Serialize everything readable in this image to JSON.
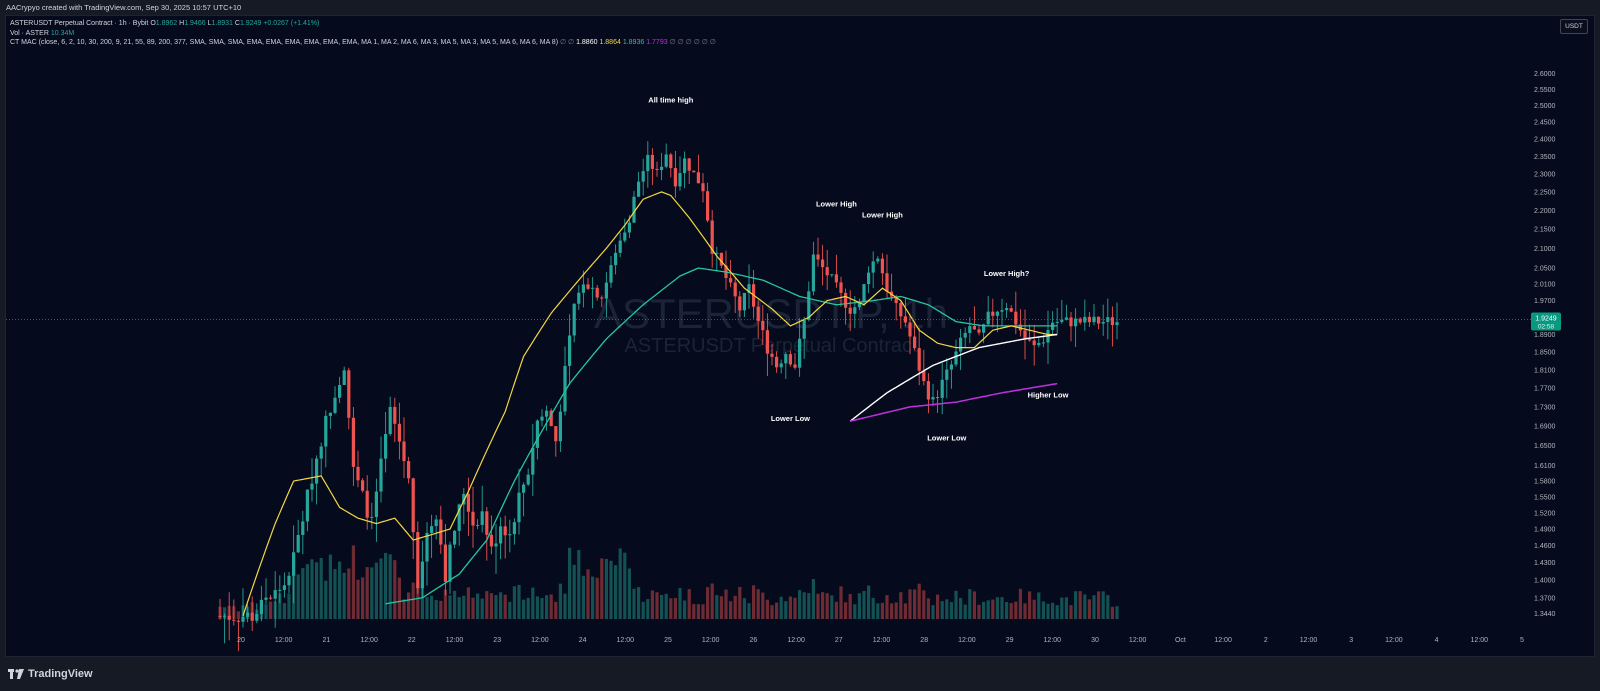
{
  "header": {
    "credit": "AACrypyo created with TradingView.com, Sep 30, 2025 10:57 UTC+10"
  },
  "legend": {
    "symbol": "ASTERUSDT Perpetual Contract · 1h · Bybit",
    "o_label": "O",
    "o_value": "1.8962",
    "h_label": "H",
    "h_value": "1.9466",
    "l_label": "L",
    "l_value": "1.8931",
    "c_label": "C",
    "c_value": "1.9249",
    "change": "+0.0267 (+1.41%)",
    "vol_label": "Vol · ASTER",
    "vol_value": "10.34M",
    "mac_label": "CT MAC (close, 6, 2, 10, 30, 200, 9, 21, 55, 89, 200, 377, SMA, SMA, SMA, EMA, EMA, EMA, EMA, EMA, EMA, MA 1, MA 2, MA 6, MA 3, MA 5, MA 3, MA 5, MA 6, MA 6, MA 8)",
    "mac_pre": "∅ ∅",
    "mac_v1": "1.8860",
    "mac_v2": "1.8864",
    "mac_v3": "1.8936",
    "mac_v4": "1.7793",
    "mac_post": "∅ ∅ ∅ ∅ ∅ ∅"
  },
  "currency_button": "USDT",
  "watermark": {
    "line1": "ASTERUSDT.P, 1h",
    "line2": "ASTERUSDT Perpetual Contract"
  },
  "price_tag": {
    "value": "1.9249",
    "countdown": "02:58"
  },
  "footer": {
    "brand": "TradingView"
  },
  "colors": {
    "bg": "#050b1c",
    "up": "#26a69a",
    "down": "#ef5350",
    "ma_fast": "#f5d742",
    "ma_mid": "#26c6a0",
    "ma_white": "#ffffff",
    "ma_slow": "#c030e0"
  },
  "chart_data": {
    "type": "candlestick",
    "timeframe": "1h",
    "x_ticks": [
      "20",
      "12:00",
      "21",
      "12:00",
      "22",
      "12:00",
      "23",
      "12:00",
      "24",
      "12:00",
      "25",
      "12:00",
      "26",
      "12:00",
      "27",
      "12:00",
      "28",
      "12:00",
      "29",
      "12:00",
      "30",
      "12:00",
      "Oct",
      "12:00",
      "2",
      "12:00",
      "3",
      "12:00",
      "4",
      "12:00",
      "5"
    ],
    "y_ticks": [
      "2.6000",
      "2.5500",
      "2.5000",
      "2.4500",
      "2.4000",
      "2.3500",
      "2.3000",
      "2.2500",
      "2.2000",
      "2.1500",
      "2.1000",
      "2.0500",
      "2.0100",
      "1.9700",
      "1.9300",
      "1.8900",
      "1.8500",
      "1.8100",
      "1.7700",
      "1.7300",
      "1.6900",
      "1.6500",
      "1.6100",
      "1.5800",
      "1.5500",
      "1.5200",
      "1.4900",
      "1.4600",
      "1.4300",
      "1.4000",
      "1.3700",
      "1.3440"
    ],
    "y_range": [
      1.33,
      2.65
    ],
    "last_price": 1.9249,
    "price_anchors": [
      {
        "t": 0,
        "p": 1.34
      },
      {
        "t": 8,
        "p": 1.34
      },
      {
        "t": 16,
        "p": 1.4
      },
      {
        "t": 20,
        "p": 1.55
      },
      {
        "t": 24,
        "p": 1.7
      },
      {
        "t": 28,
        "p": 1.82
      },
      {
        "t": 30,
        "p": 1.6
      },
      {
        "t": 34,
        "p": 1.5
      },
      {
        "t": 38,
        "p": 1.72
      },
      {
        "t": 40,
        "p": 1.66
      },
      {
        "t": 42,
        "p": 1.58
      },
      {
        "t": 44,
        "p": 1.4
      },
      {
        "t": 46,
        "p": 1.48
      },
      {
        "t": 48,
        "p": 1.52
      },
      {
        "t": 50,
        "p": 1.41
      },
      {
        "t": 52,
        "p": 1.49
      },
      {
        "t": 54,
        "p": 1.56
      },
      {
        "t": 56,
        "p": 1.5
      },
      {
        "t": 58,
        "p": 1.52
      },
      {
        "t": 60,
        "p": 1.45
      },
      {
        "t": 62,
        "p": 1.5
      },
      {
        "t": 64,
        "p": 1.48
      },
      {
        "t": 66,
        "p": 1.55
      },
      {
        "t": 68,
        "p": 1.6
      },
      {
        "t": 70,
        "p": 1.7
      },
      {
        "t": 72,
        "p": 1.72
      },
      {
        "t": 74,
        "p": 1.66
      },
      {
        "t": 78,
        "p": 1.95
      },
      {
        "t": 80,
        "p": 2.02
      },
      {
        "t": 84,
        "p": 1.98
      },
      {
        "t": 88,
        "p": 2.12
      },
      {
        "t": 90,
        "p": 2.18
      },
      {
        "t": 92,
        "p": 2.28
      },
      {
        "t": 94,
        "p": 2.34
      },
      {
        "t": 96,
        "p": 2.3
      },
      {
        "t": 98,
        "p": 2.36
      },
      {
        "t": 100,
        "p": 2.28
      },
      {
        "t": 102,
        "p": 2.34
      },
      {
        "t": 104,
        "p": 2.3
      },
      {
        "t": 106,
        "p": 2.26
      },
      {
        "t": 108,
        "p": 2.1
      },
      {
        "t": 110,
        "p": 2.05
      },
      {
        "t": 114,
        "p": 1.95
      },
      {
        "t": 116,
        "p": 2.0
      },
      {
        "t": 118,
        "p": 1.92
      },
      {
        "t": 120,
        "p": 1.86
      },
      {
        "t": 122,
        "p": 1.82
      },
      {
        "t": 124,
        "p": 1.85
      },
      {
        "t": 126,
        "p": 1.82
      },
      {
        "t": 128,
        "p": 1.92
      },
      {
        "t": 130,
        "p": 2.08
      },
      {
        "t": 132,
        "p": 2.05
      },
      {
        "t": 134,
        "p": 2.02
      },
      {
        "t": 136,
        "p": 1.98
      },
      {
        "t": 138,
        "p": 1.95
      },
      {
        "t": 140,
        "p": 1.96
      },
      {
        "t": 142,
        "p": 2.05
      },
      {
        "t": 144,
        "p": 2.08
      },
      {
        "t": 146,
        "p": 2.0
      },
      {
        "t": 148,
        "p": 1.95
      },
      {
        "t": 150,
        "p": 1.92
      },
      {
        "t": 152,
        "p": 1.85
      },
      {
        "t": 154,
        "p": 1.78
      },
      {
        "t": 156,
        "p": 1.74
      },
      {
        "t": 158,
        "p": 1.78
      },
      {
        "t": 160,
        "p": 1.82
      },
      {
        "t": 162,
        "p": 1.87
      },
      {
        "t": 164,
        "p": 1.91
      },
      {
        "t": 166,
        "p": 1.88
      },
      {
        "t": 168,
        "p": 1.93
      },
      {
        "t": 170,
        "p": 1.95
      },
      {
        "t": 172,
        "p": 1.96
      },
      {
        "t": 174,
        "p": 1.92
      },
      {
        "t": 176,
        "p": 1.88
      },
      {
        "t": 178,
        "p": 1.86
      },
      {
        "t": 180,
        "p": 1.88
      },
      {
        "t": 182,
        "p": 1.92
      }
    ],
    "ma_fast_anchors": [
      {
        "t": 5,
        "p": 1.34
      },
      {
        "t": 12,
        "p": 1.5
      },
      {
        "t": 16,
        "p": 1.58
      },
      {
        "t": 22,
        "p": 1.59
      },
      {
        "t": 26,
        "p": 1.53
      },
      {
        "t": 30,
        "p": 1.51
      },
      {
        "t": 34,
        "p": 1.5
      },
      {
        "t": 38,
        "p": 1.51
      },
      {
        "t": 42,
        "p": 1.47
      },
      {
        "t": 46,
        "p": 1.48
      },
      {
        "t": 50,
        "p": 1.49
      },
      {
        "t": 54,
        "p": 1.56
      },
      {
        "t": 58,
        "p": 1.64
      },
      {
        "t": 62,
        "p": 1.72
      },
      {
        "t": 66,
        "p": 1.84
      },
      {
        "t": 72,
        "p": 1.94
      },
      {
        "t": 78,
        "p": 2.02
      },
      {
        "t": 84,
        "p": 2.1
      },
      {
        "t": 88,
        "p": 2.16
      },
      {
        "t": 92,
        "p": 2.23
      },
      {
        "t": 96,
        "p": 2.25
      },
      {
        "t": 98,
        "p": 2.24
      },
      {
        "t": 102,
        "p": 2.18
      },
      {
        "t": 108,
        "p": 2.08
      },
      {
        "t": 114,
        "p": 2.0
      },
      {
        "t": 120,
        "p": 1.95
      },
      {
        "t": 124,
        "p": 1.91
      },
      {
        "t": 128,
        "p": 1.93
      },
      {
        "t": 132,
        "p": 1.97
      },
      {
        "t": 136,
        "p": 1.98
      },
      {
        "t": 140,
        "p": 1.96
      },
      {
        "t": 144,
        "p": 2.0
      },
      {
        "t": 148,
        "p": 1.97
      },
      {
        "t": 152,
        "p": 1.9
      },
      {
        "t": 156,
        "p": 1.87
      },
      {
        "t": 160,
        "p": 1.86
      },
      {
        "t": 164,
        "p": 1.86
      },
      {
        "t": 168,
        "p": 1.9
      },
      {
        "t": 172,
        "p": 1.91
      },
      {
        "t": 176,
        "p": 1.9
      },
      {
        "t": 180,
        "p": 1.89
      },
      {
        "t": 182,
        "p": 1.89
      }
    ],
    "ma_mid_anchors": [
      {
        "t": 36,
        "p": 1.36
      },
      {
        "t": 44,
        "p": 1.37
      },
      {
        "t": 52,
        "p": 1.41
      },
      {
        "t": 58,
        "p": 1.47
      },
      {
        "t": 64,
        "p": 1.58
      },
      {
        "t": 70,
        "p": 1.68
      },
      {
        "t": 76,
        "p": 1.78
      },
      {
        "t": 84,
        "p": 1.88
      },
      {
        "t": 92,
        "p": 1.96
      },
      {
        "t": 100,
        "p": 2.03
      },
      {
        "t": 104,
        "p": 2.05
      },
      {
        "t": 110,
        "p": 2.04
      },
      {
        "t": 118,
        "p": 2.02
      },
      {
        "t": 126,
        "p": 1.98
      },
      {
        "t": 134,
        "p": 1.96
      },
      {
        "t": 142,
        "p": 1.97
      },
      {
        "t": 148,
        "p": 1.98
      },
      {
        "t": 154,
        "p": 1.96
      },
      {
        "t": 160,
        "p": 1.92
      },
      {
        "t": 166,
        "p": 1.91
      },
      {
        "t": 172,
        "p": 1.91
      },
      {
        "t": 178,
        "p": 1.91
      },
      {
        "t": 182,
        "p": 1.91
      }
    ],
    "ma_white_anchors": [
      {
        "t": 137,
        "p": 1.7
      },
      {
        "t": 145,
        "p": 1.76
      },
      {
        "t": 155,
        "p": 1.82
      },
      {
        "t": 165,
        "p": 1.86
      },
      {
        "t": 175,
        "p": 1.88
      },
      {
        "t": 182,
        "p": 1.89
      }
    ],
    "ma_slow_anchors": [
      {
        "t": 137,
        "p": 1.7
      },
      {
        "t": 150,
        "p": 1.73
      },
      {
        "t": 160,
        "p": 1.74
      },
      {
        "t": 170,
        "p": 1.76
      },
      {
        "t": 182,
        "p": 1.78
      }
    ],
    "annotations": [
      {
        "text": "All time high",
        "t": 98,
        "p": 2.51
      },
      {
        "text": "Lower High",
        "t": 134,
        "p": 2.21
      },
      {
        "text": "Lower High",
        "t": 144,
        "p": 2.18
      },
      {
        "text": "Lower Low",
        "t": 124,
        "p": 1.7
      },
      {
        "text": "Lower Low",
        "t": 158,
        "p": 1.66
      },
      {
        "text": "Lower High?",
        "t": 171,
        "p": 2.03
      },
      {
        "text": "Higher Low",
        "t": 180,
        "p": 1.75
      }
    ]
  }
}
